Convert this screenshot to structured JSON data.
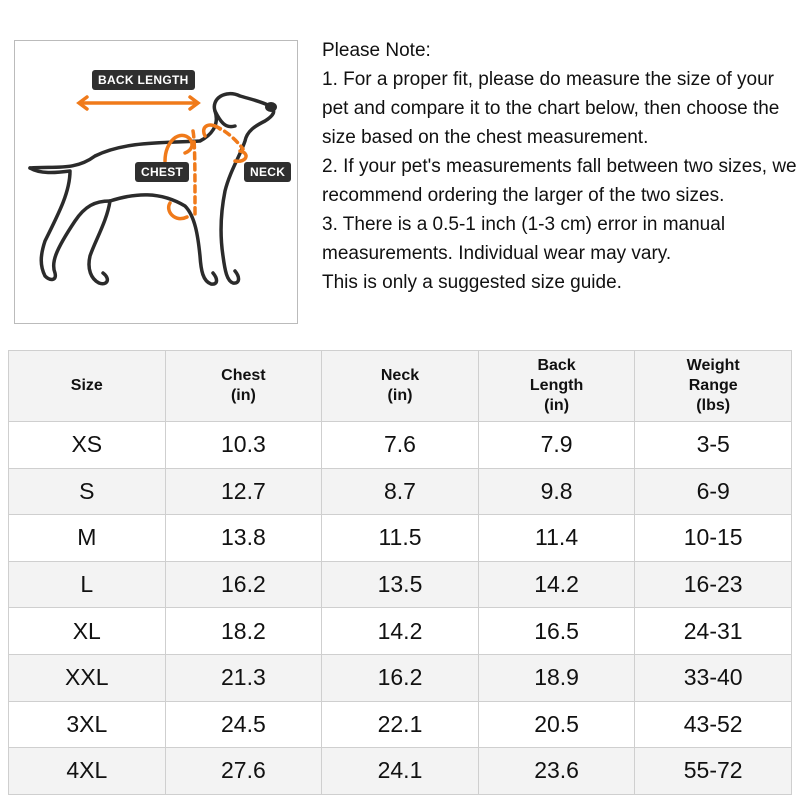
{
  "figure": {
    "labels": {
      "back_length": "BACK LENGTH",
      "chest": "CHEST",
      "neck": "NECK"
    },
    "accent_color": "#f07a1a"
  },
  "notes": {
    "title": "Please Note:",
    "items": [
      "1. For a proper fit, please do measure the size of your pet and compare it to the chart below, then choose the size based on the chest measurement.",
      "2. If your pet's measurements fall between two sizes, we recommend ordering the larger of the two sizes.",
      "3. There is a 0.5-1 inch (1-3 cm) error in manual measurements. Individual wear may vary.",
      "This is only a suggested size guide."
    ]
  },
  "table": {
    "headers": [
      {
        "l1": "Size",
        "l2": "",
        "l3": ""
      },
      {
        "l1": "Chest",
        "l2": "(in)",
        "l3": ""
      },
      {
        "l1": "Neck",
        "l2": "(in)",
        "l3": ""
      },
      {
        "l1": "Back",
        "l2": "Length",
        "l3": "(in)"
      },
      {
        "l1": "Weight",
        "l2": "Range",
        "l3": "(lbs)"
      }
    ],
    "rows": [
      [
        "XS",
        "10.3",
        "7.6",
        "7.9",
        "3-5"
      ],
      [
        "S",
        "12.7",
        "8.7",
        "9.8",
        "6-9"
      ],
      [
        "M",
        "13.8",
        "11.5",
        "11.4",
        "10-15"
      ],
      [
        "L",
        "16.2",
        "13.5",
        "14.2",
        "16-23"
      ],
      [
        "XL",
        "18.2",
        "14.2",
        "16.5",
        "24-31"
      ],
      [
        "XXL",
        "21.3",
        "16.2",
        "18.9",
        "33-40"
      ],
      [
        "3XL",
        "24.5",
        "22.1",
        "20.5",
        "43-52"
      ],
      [
        "4XL",
        "27.6",
        "24.1",
        "23.6",
        "55-72"
      ]
    ]
  }
}
